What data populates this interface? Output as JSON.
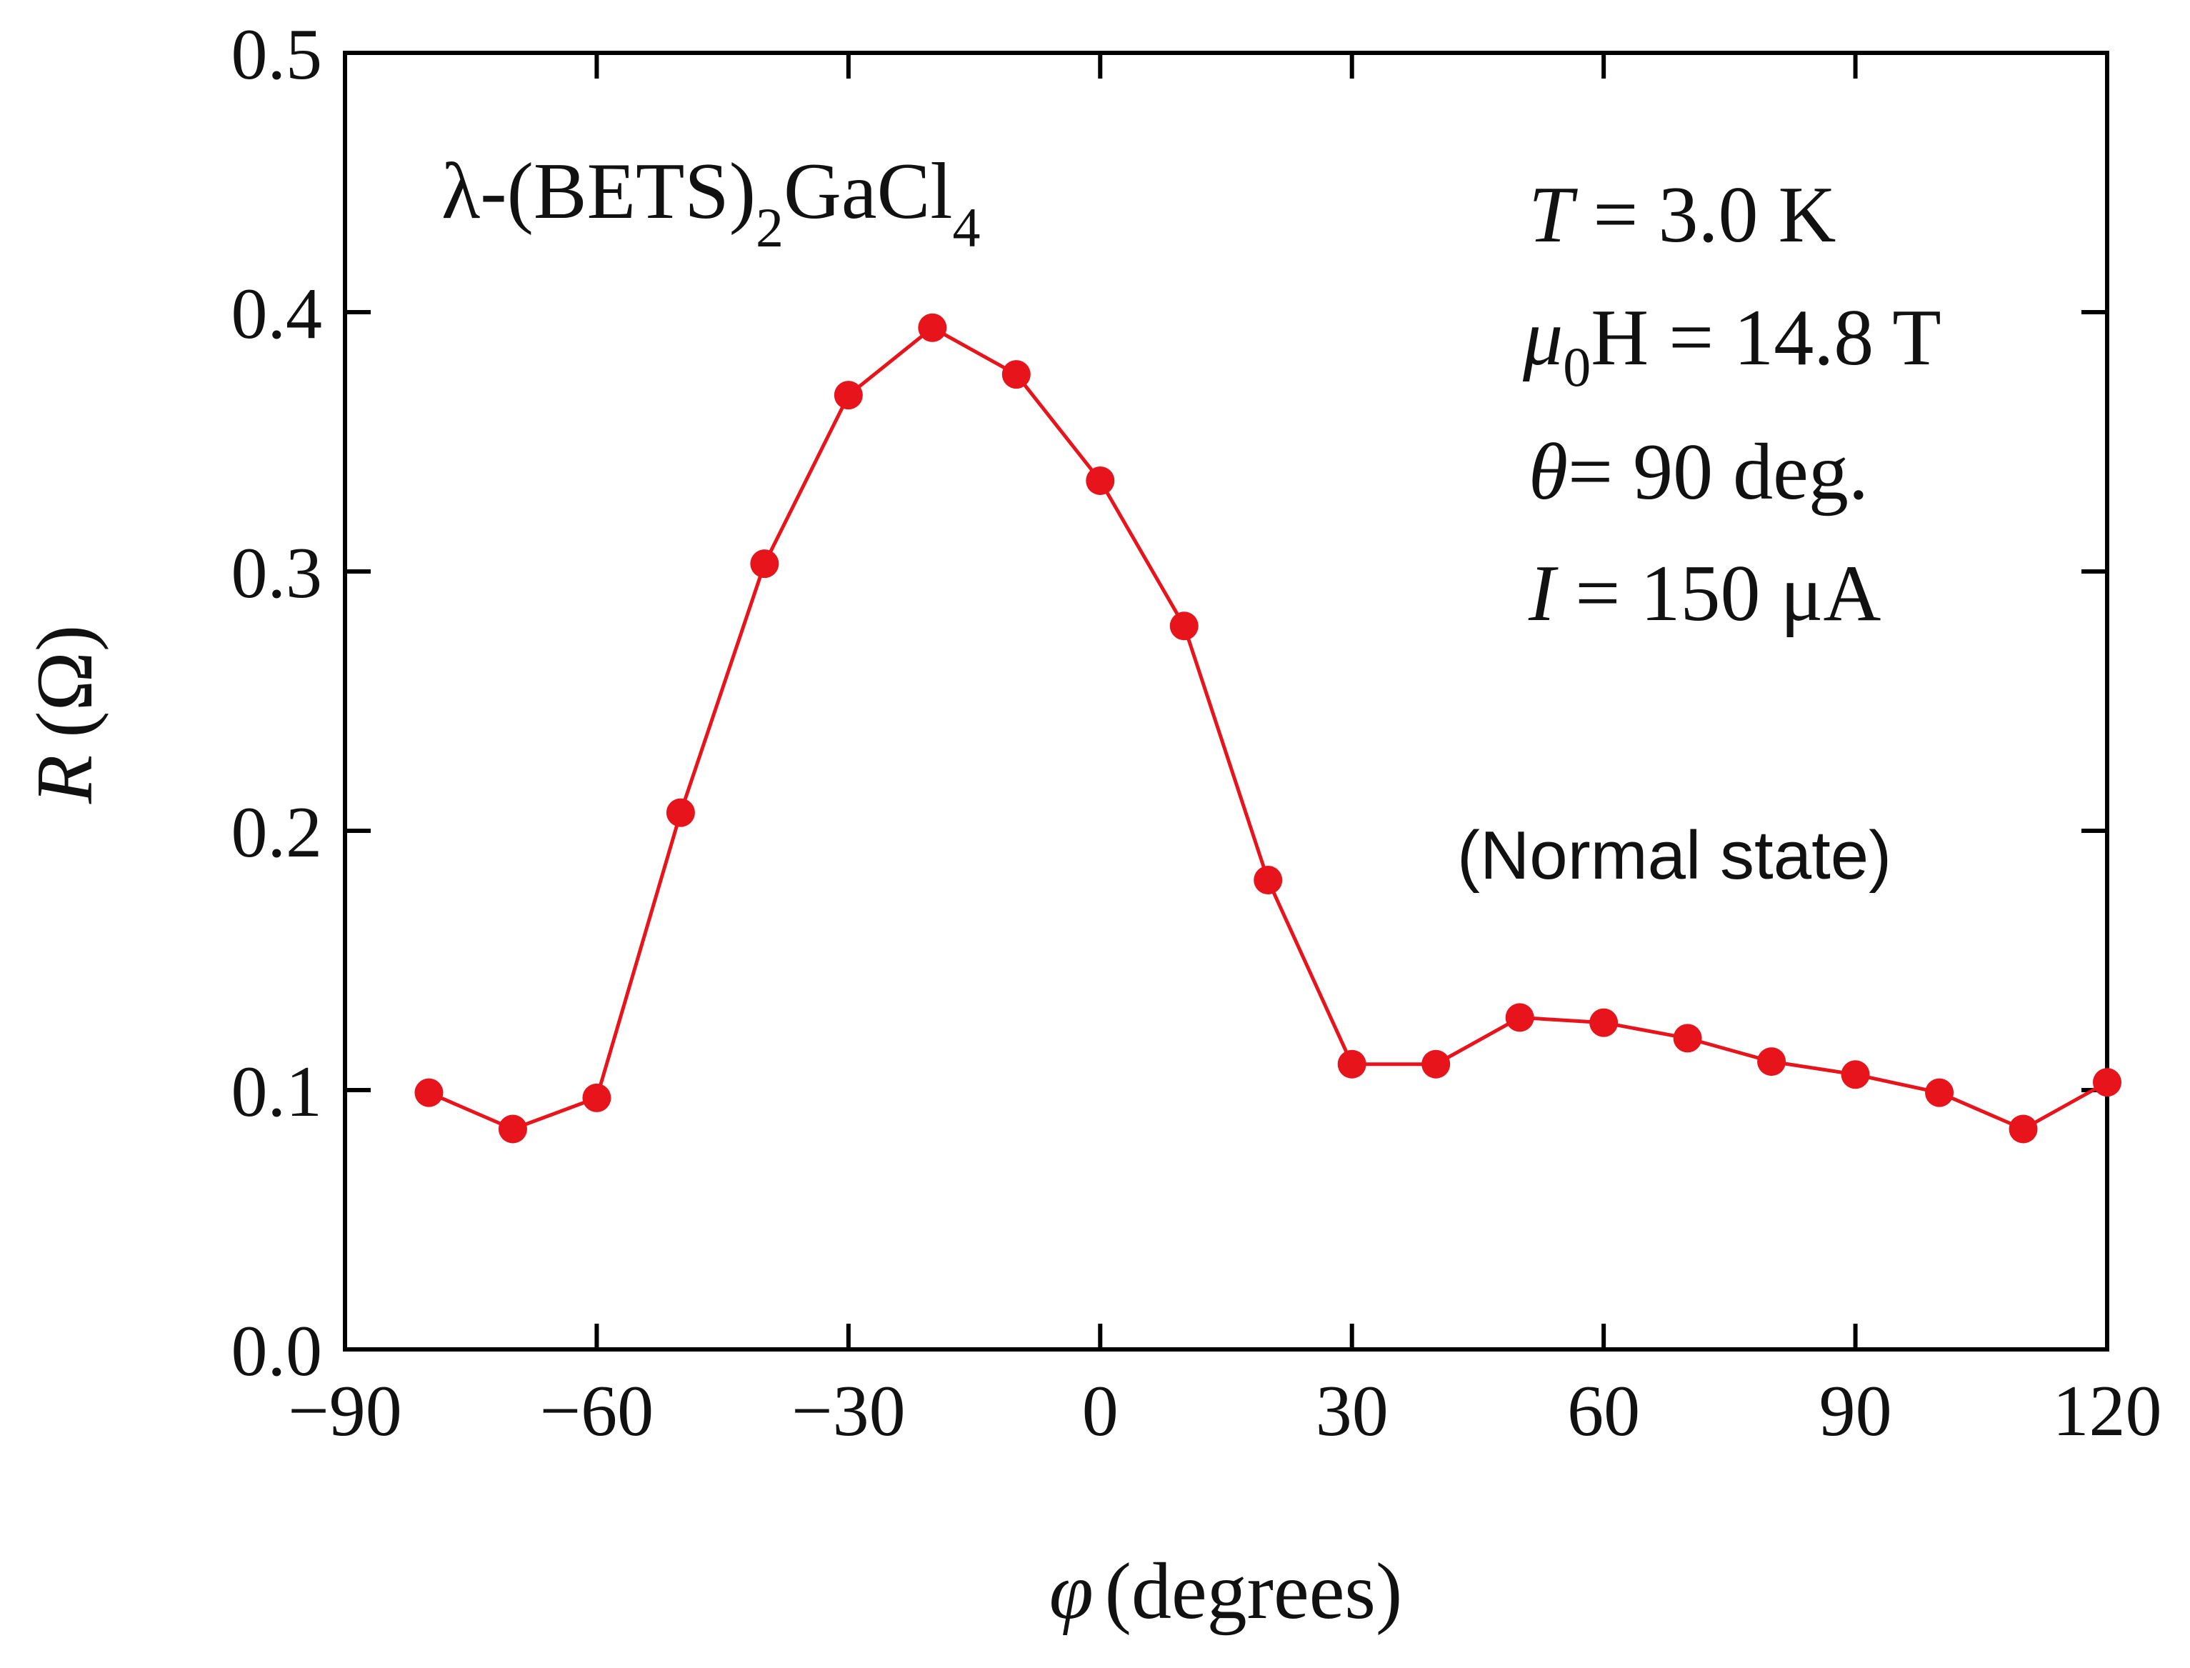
{
  "chart_data": {
    "type": "line",
    "title": "",
    "xlabel": {
      "symbol": "φ",
      "text": "(degrees)"
    },
    "ylabel": {
      "symbol": "R",
      "text": "(Ω)"
    },
    "xlim": [
      -90,
      120
    ],
    "ylim": [
      0.0,
      0.5
    ],
    "xticks": [
      "−90",
      "−60",
      "−30",
      "0",
      "30",
      "60",
      "90",
      "120"
    ],
    "xtick_values": [
      -90,
      -60,
      -30,
      0,
      30,
      60,
      90,
      120
    ],
    "yticks": [
      "0.0",
      "0.1",
      "0.2",
      "0.3",
      "0.4",
      "0.5"
    ],
    "ytick_values": [
      0.0,
      0.1,
      0.2,
      0.3,
      0.4,
      0.5
    ],
    "grid": false,
    "series": [
      {
        "name": "R vs phi",
        "color": "#e8141c",
        "marker": "filled-circle",
        "x": [
          -80,
          -70,
          -60,
          -50,
          -40,
          -30,
          -20,
          -10,
          0,
          10,
          20,
          30,
          40,
          50,
          60,
          70,
          80,
          90,
          100,
          110,
          120
        ],
        "y": [
          0.099,
          0.085,
          0.097,
          0.207,
          0.303,
          0.368,
          0.394,
          0.376,
          0.335,
          0.279,
          0.181,
          0.11,
          0.11,
          0.128,
          0.126,
          0.12,
          0.111,
          0.106,
          0.099,
          0.085,
          0.103
        ]
      }
    ],
    "annotations": {
      "compound": {
        "lambda": "λ-(BETS)",
        "sub1": "2",
        "mid": "GaCl",
        "sub2": "4"
      },
      "temperature": {
        "symbol": "T",
        "text": " = 3.0 K"
      },
      "field": {
        "symbol": "μ",
        "sub": "0",
        "text": "H = 14.8 T"
      },
      "angle": {
        "symbol": "θ",
        "text": "= 90 deg."
      },
      "current": {
        "symbol": "I",
        "text": " = 150 μA"
      },
      "state": "(Normal state)"
    }
  }
}
